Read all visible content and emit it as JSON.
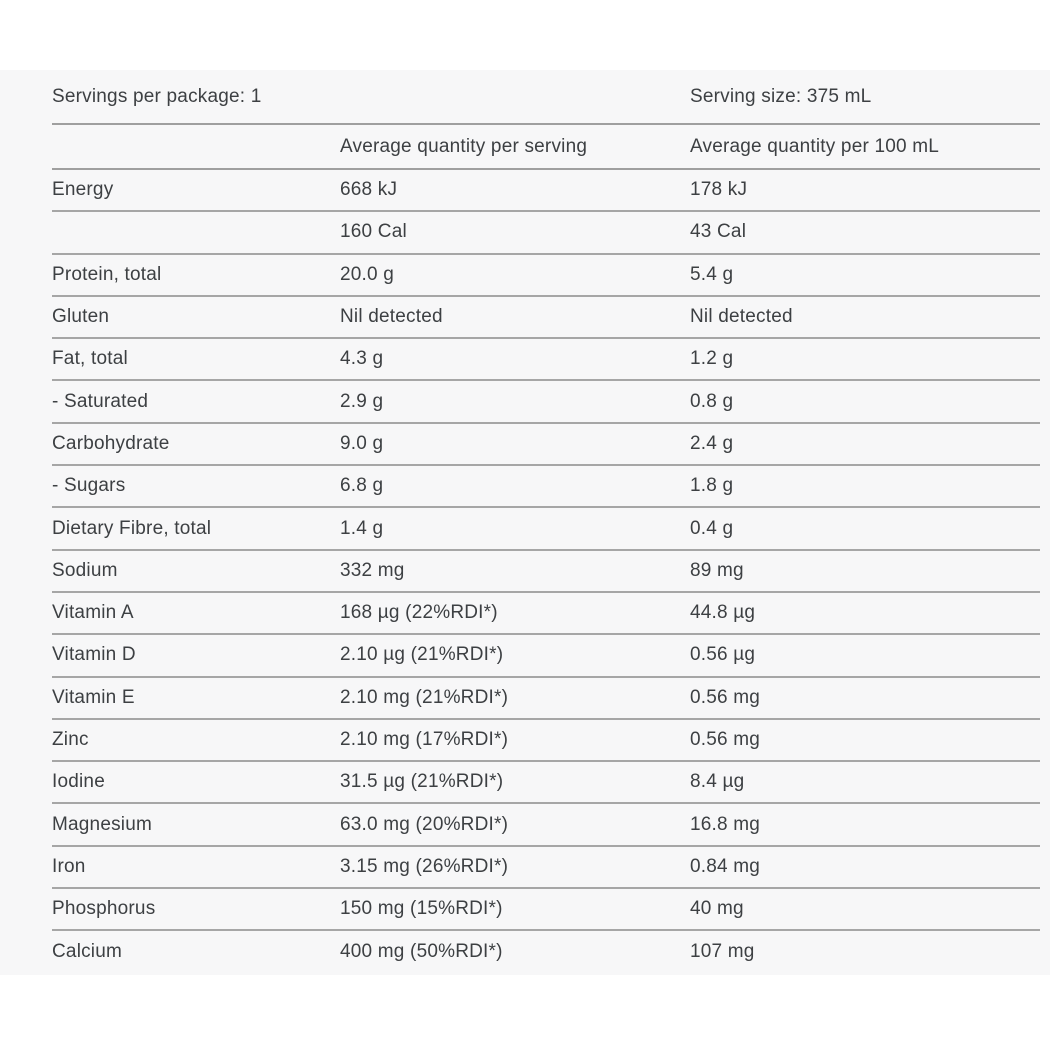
{
  "panel": {
    "background_color": "#f7f7f8",
    "divider_color": "#a6a6a6",
    "text_color": "#3d4043",
    "servings_per_package": "Servings per package: 1",
    "serving_size": "Serving size: 375 mL",
    "columns": [
      "",
      "Average quantity per serving",
      "Average quantity per 100 mL"
    ],
    "rows": [
      {
        "label": "Energy",
        "per_serving": "668 kJ",
        "per_100ml": "178 kJ"
      },
      {
        "label": "",
        "per_serving": "160 Cal",
        "per_100ml": "43 Cal"
      },
      {
        "label": "Protein, total",
        "per_serving": "20.0 g",
        "per_100ml": "5.4 g"
      },
      {
        "label": "Gluten",
        "per_serving": "Nil detected",
        "per_100ml": "Nil detected"
      },
      {
        "label": "Fat, total",
        "per_serving": "4.3 g",
        "per_100ml": "1.2 g"
      },
      {
        "label": "- Saturated",
        "per_serving": "2.9 g",
        "per_100ml": "0.8 g"
      },
      {
        "label": "Carbohydrate",
        "per_serving": "9.0 g",
        "per_100ml": "2.4 g"
      },
      {
        "label": "- Sugars",
        "per_serving": "6.8 g",
        "per_100ml": "1.8 g"
      },
      {
        "label": "Dietary Fibre, total",
        "per_serving": "1.4 g",
        "per_100ml": "0.4 g"
      },
      {
        "label": "Sodium",
        "per_serving": "332 mg",
        "per_100ml": "89 mg"
      },
      {
        "label": "Vitamin A",
        "per_serving": "168 µg (22%RDI*)",
        "per_100ml": "44.8 µg"
      },
      {
        "label": "Vitamin D",
        "per_serving": "2.10 µg (21%RDI*)",
        "per_100ml": "0.56 µg"
      },
      {
        "label": "Vitamin E",
        "per_serving": "2.10 mg (21%RDI*)",
        "per_100ml": "0.56 mg"
      },
      {
        "label": "Zinc",
        "per_serving": "2.10 mg (17%RDI*)",
        "per_100ml": "0.56 mg"
      },
      {
        "label": "Iodine",
        "per_serving": "31.5 µg (21%RDI*)",
        "per_100ml": "8.4 µg"
      },
      {
        "label": "Magnesium",
        "per_serving": "63.0 mg (20%RDI*)",
        "per_100ml": "16.8 mg"
      },
      {
        "label": "Iron",
        "per_serving": "3.15 mg (26%RDI*)",
        "per_100ml": "0.84 mg"
      },
      {
        "label": "Phosphorus",
        "per_serving": "150 mg (15%RDI*)",
        "per_100ml": "40 mg"
      },
      {
        "label": "Calcium",
        "per_serving": "400 mg (50%RDI*)",
        "per_100ml": "107 mg"
      }
    ]
  }
}
